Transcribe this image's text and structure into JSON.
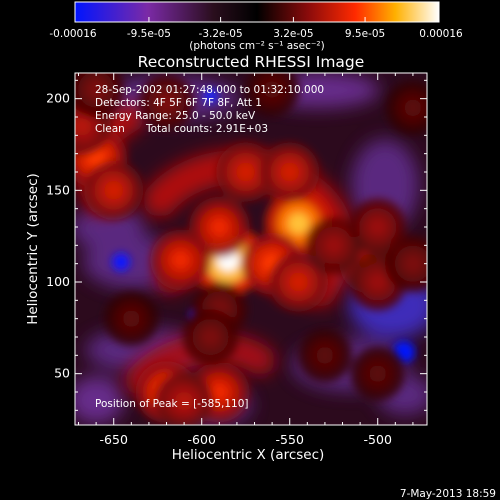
{
  "chart_data": {
    "type": "heatmap",
    "title": "Reconstructed RHESSI Image",
    "xlabel": "Heliocentric X (arcsec)",
    "ylabel": "Heliocentric Y (arcsec)",
    "xlim": [
      -672,
      -472
    ],
    "ylim": [
      22,
      214
    ],
    "x_ticks": [
      -650,
      -600,
      -550,
      -500
    ],
    "y_ticks": [
      50,
      100,
      150,
      200
    ],
    "colorbar": {
      "range": [
        -0.00016,
        0.00016
      ],
      "tick_values": [
        -0.00016,
        -9.5e-05,
        -3.2e-05,
        3.2e-05,
        9.5e-05,
        0.00016
      ],
      "tick_labels": [
        "-0.00016",
        "-9.5e-05",
        "-3.2e-05",
        "3.2e-05",
        "9.5e-05",
        "0.00016"
      ],
      "unit_label": "(photons cm⁻² s⁻¹ asec⁻²)"
    },
    "annotations": {
      "line1": "28-Sep-2002 01:27:48.000 to 01:32:10.000",
      "line2": "Detectors: 4F 5F 6F 7F 8F, Att 1",
      "line3": "Energy Range: 25.0 - 50.0 keV",
      "line4_left": "Clean",
      "line4_right": "Total counts: 2.91E+03",
      "peak_text": "Position of Peak = [-585,110]"
    },
    "footer": {
      "timestamp": "7-May-2013 18:59"
    },
    "sources": [
      {
        "x": -585,
        "y": 112,
        "value": 0.00016
      },
      {
        "x": -545,
        "y": 132,
        "value": 0.00013
      },
      {
        "x": -590,
        "y": 130,
        "value": 8e-05
      },
      {
        "x": -612,
        "y": 112,
        "value": 8e-05
      },
      {
        "x": -575,
        "y": 160,
        "value": 7e-05
      },
      {
        "x": -550,
        "y": 160,
        "value": 7e-05
      },
      {
        "x": -560,
        "y": 110,
        "value": 9e-05
      },
      {
        "x": -545,
        "y": 100,
        "value": 7e-05
      },
      {
        "x": -660,
        "y": 168,
        "value": 9e-05
      },
      {
        "x": -650,
        "y": 150,
        "value": 7e-05
      },
      {
        "x": -668,
        "y": 185,
        "value": 6e-05
      },
      {
        "x": -620,
        "y": 40,
        "value": 9e-05
      },
      {
        "x": -590,
        "y": 40,
        "value": 8e-05
      },
      {
        "x": -610,
        "y": 35,
        "value": 6e-05
      },
      {
        "x": -505,
        "y": 110,
        "value": 7e-05
      },
      {
        "x": -500,
        "y": 100,
        "value": 5e-05
      },
      {
        "x": -480,
        "y": 110,
        "value": 4e-05
      },
      {
        "x": -640,
        "y": 80,
        "value": 3e-05
      },
      {
        "x": -590,
        "y": 85,
        "value": 4e-05
      },
      {
        "x": -500,
        "y": 130,
        "value": 5e-05
      },
      {
        "x": -595,
        "y": 70,
        "value": 4e-05
      },
      {
        "x": -620,
        "y": 198,
        "value": 4e-05
      },
      {
        "x": -560,
        "y": 205,
        "value": 3e-05
      },
      {
        "x": -660,
        "y": 205,
        "value": 4e-05
      },
      {
        "x": -530,
        "y": 60,
        "value": 3e-05
      },
      {
        "x": -500,
        "y": 50,
        "value": 3e-05
      },
      {
        "x": -480,
        "y": 195,
        "value": 3e-05
      },
      {
        "x": -525,
        "y": 120,
        "value": 5e-05
      }
    ]
  }
}
